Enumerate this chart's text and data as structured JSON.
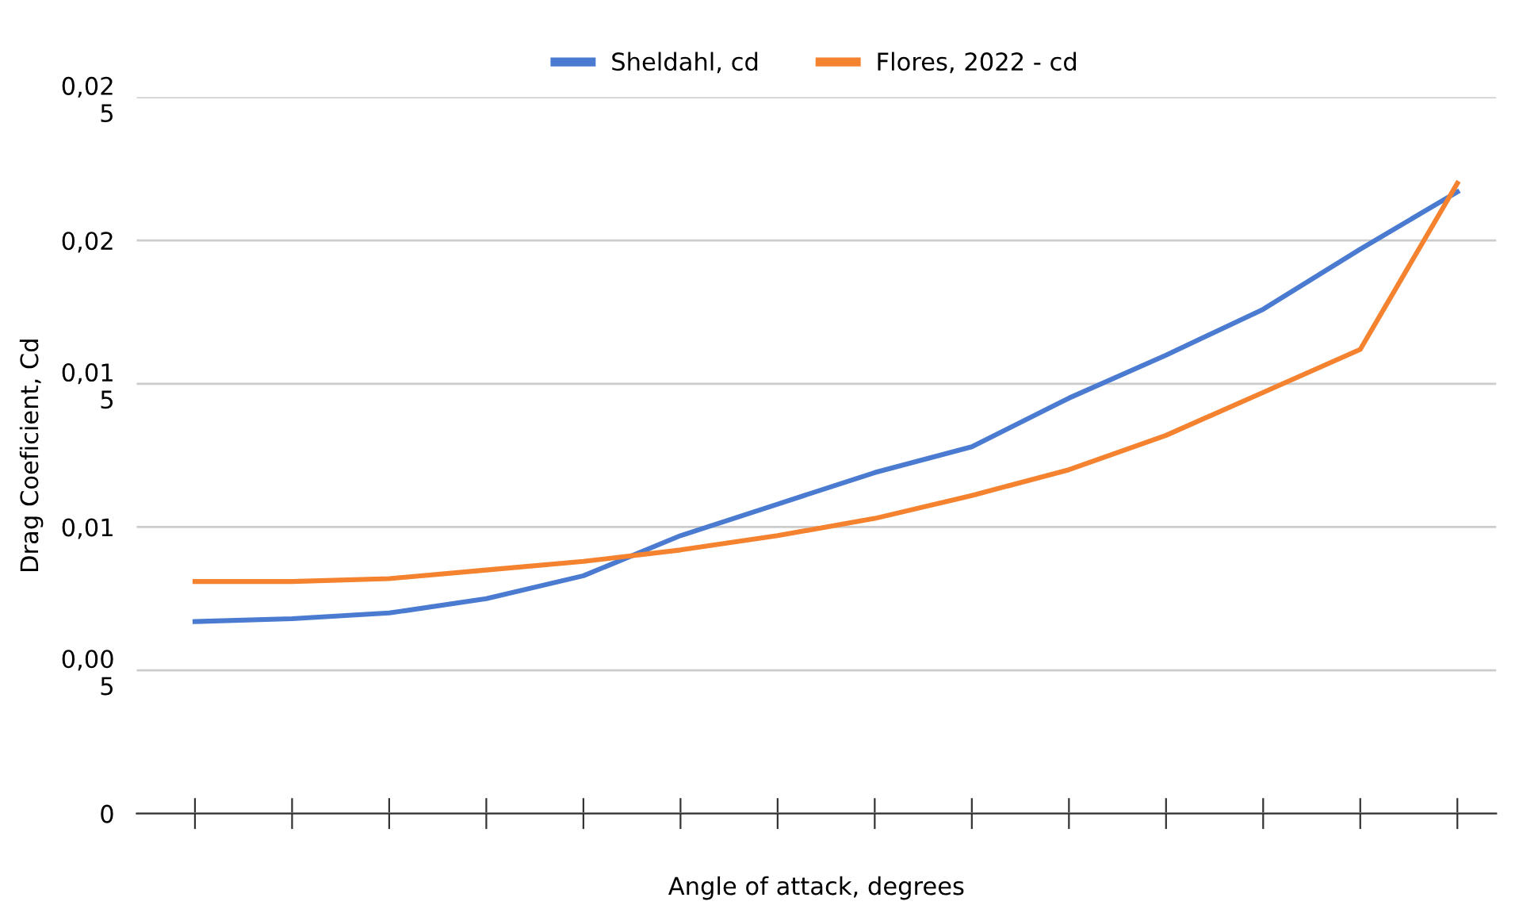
{
  "chart_data": {
    "type": "line",
    "xlabel": "Angle of attack, degrees",
    "ylabel": "Drag Coeficient, Cd",
    "categories": [
      null,
      null,
      null,
      null,
      null,
      null,
      null,
      null,
      null,
      null,
      null,
      null,
      null,
      null
    ],
    "series": [
      {
        "name": "Sheldahl, cd",
        "color": "#4a7bd0",
        "values": [
          0.0067,
          0.0068,
          0.007,
          0.0075,
          0.0083,
          0.0097,
          0.0108,
          0.0119,
          0.0128,
          0.0145,
          0.016,
          0.0176,
          0.0197,
          0.0217
        ]
      },
      {
        "name": "Flores, 2022 - cd",
        "color": "#f4822f",
        "values": [
          0.0081,
          0.0081,
          0.0082,
          0.0085,
          0.0088,
          0.0092,
          0.0097,
          0.0103,
          0.0111,
          0.012,
          0.0132,
          0.0147,
          0.0162,
          0.022
        ]
      }
    ],
    "ylim": [
      0,
      0.025
    ],
    "yticks": [
      0,
      {
        "value": 0.005,
        "label": "0,00\n5"
      },
      {
        "value": 0.01,
        "label": "0,01"
      },
      {
        "value": 0.015,
        "label": "0,01\n5"
      },
      {
        "value": 0.02,
        "label": "0,02"
      },
      {
        "value": 0.025,
        "label": "0,02\n5"
      }
    ],
    "grid": "y",
    "legend": "top",
    "marker": "none",
    "line_style": "solid"
  }
}
